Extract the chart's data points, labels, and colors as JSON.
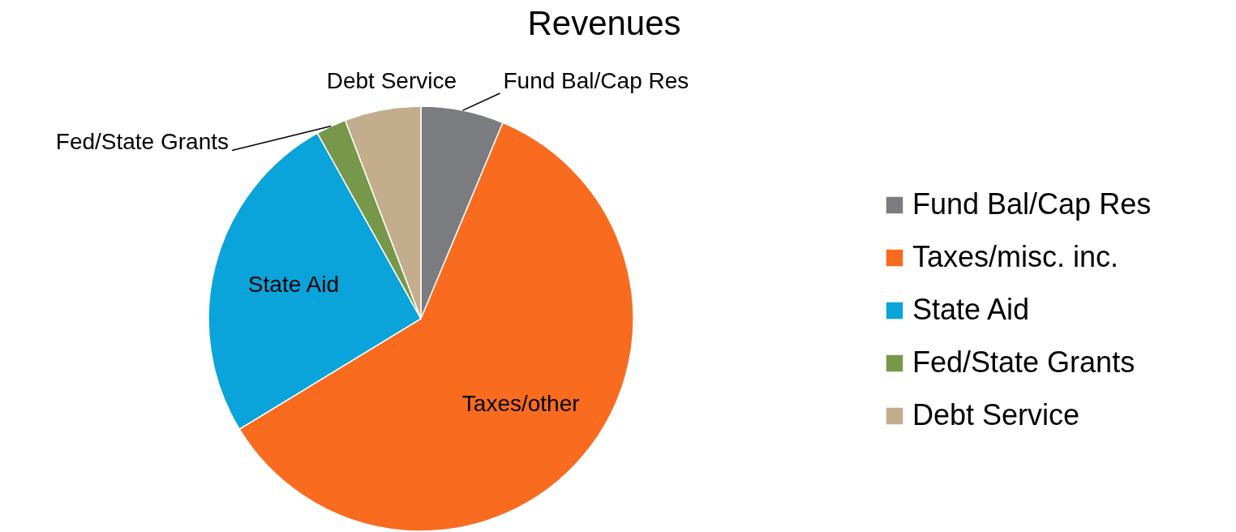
{
  "chart_data": {
    "type": "pie",
    "title": "Revenues",
    "categories": [
      "Fund Bal/Cap Res",
      "Taxes/misc. inc.",
      "State Aid",
      "Fed/State Grants",
      "Debt Service"
    ],
    "values": [
      6.3,
      60.0,
      25.6,
      2.3,
      5.8
    ],
    "colors": [
      "#7b7c80",
      "#f96b1e",
      "#0aa3da",
      "#77984a",
      "#c4ad8c"
    ],
    "annotations": [
      "Fund Bal/Cap Res",
      "Taxes/other",
      "State Aid",
      "Fed/State Grants",
      "Debt Service"
    ],
    "legend": "right"
  }
}
